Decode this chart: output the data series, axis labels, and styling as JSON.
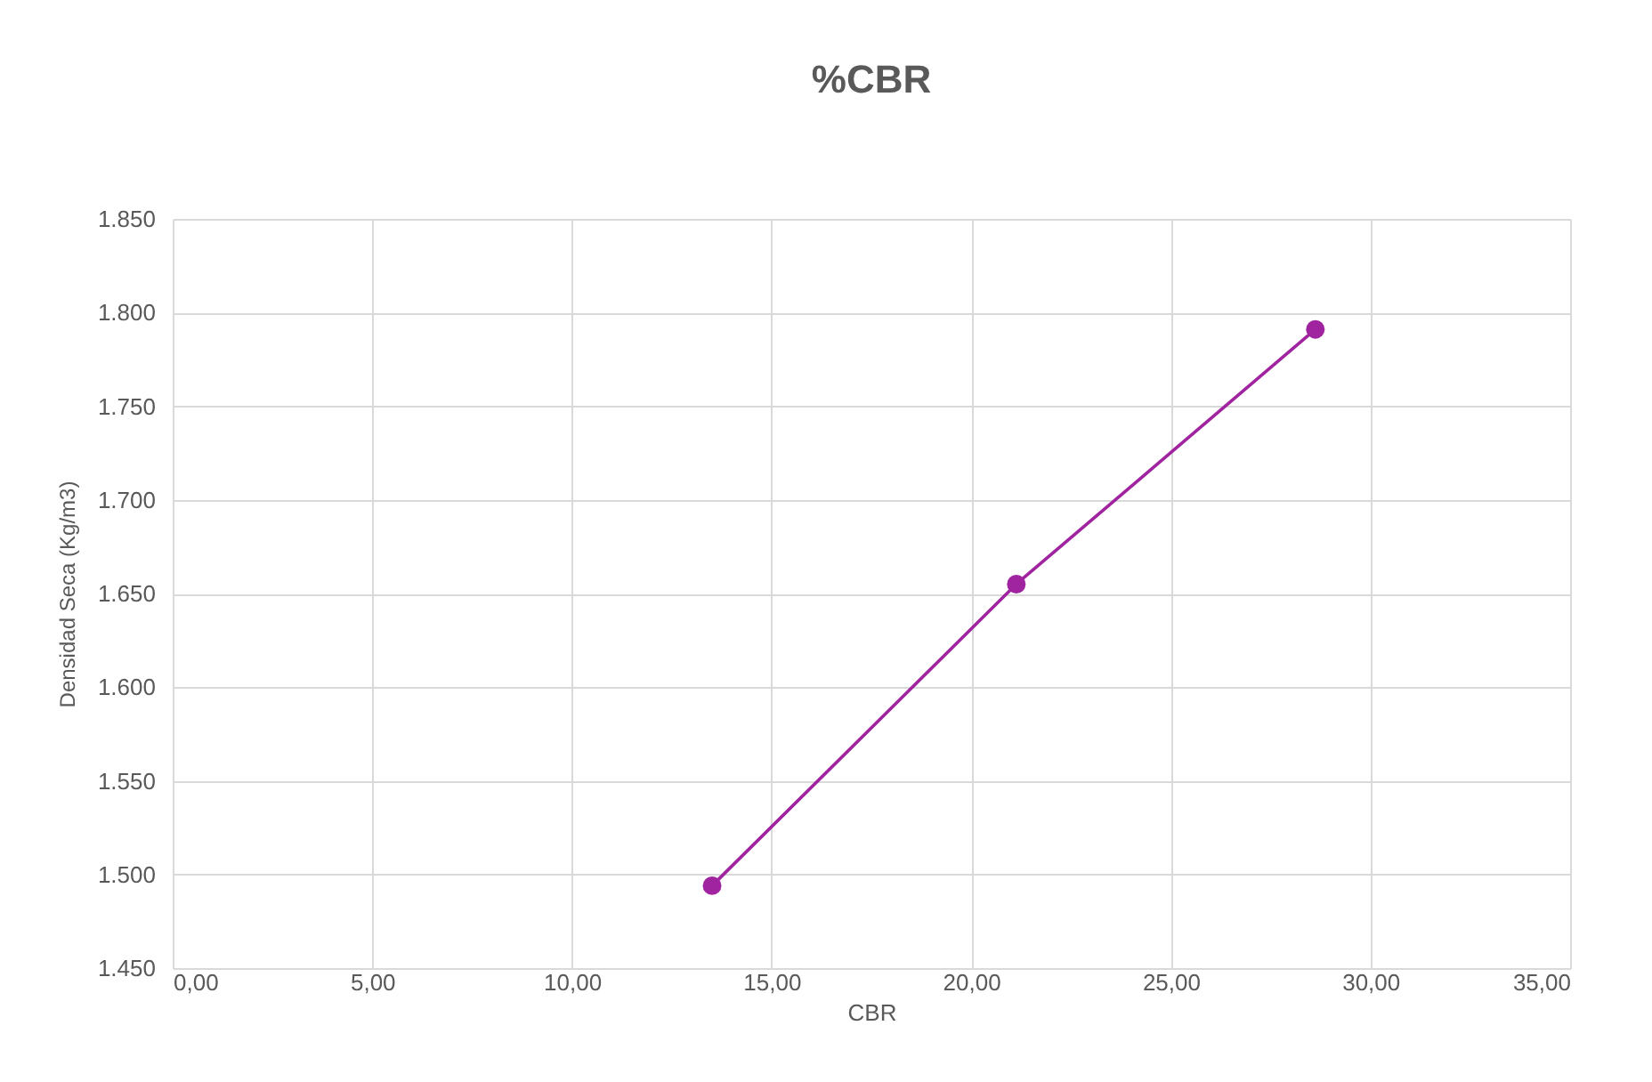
{
  "chart_data": {
    "type": "line",
    "title": "%CBR",
    "xlabel": "CBR",
    "ylabel": "Densidad Seca (Kg/m3)",
    "x": [
      13.51,
      21.13,
      28.62
    ],
    "series": [
      {
        "color": "#a0249f",
        "values": [
          1494,
          1655,
          1791
        ]
      }
    ],
    "xlim": [
      0,
      35
    ],
    "ylim": [
      1450,
      1850
    ],
    "xticks": [
      {
        "value": 0,
        "label": "0,00"
      },
      {
        "value": 5,
        "label": "5,00"
      },
      {
        "value": 10,
        "label": "10,00"
      },
      {
        "value": 15,
        "label": "15,00"
      },
      {
        "value": 20,
        "label": "20,00"
      },
      {
        "value": 25,
        "label": "25,00"
      },
      {
        "value": 30,
        "label": "30,00"
      },
      {
        "value": 35,
        "label": "35,00"
      }
    ],
    "yticks": [
      {
        "value": 1450,
        "label": "1.450"
      },
      {
        "value": 1500,
        "label": "1.500"
      },
      {
        "value": 1550,
        "label": "1.550"
      },
      {
        "value": 1600,
        "label": "1.600"
      },
      {
        "value": 1650,
        "label": "1.650"
      },
      {
        "value": 1700,
        "label": "1.700"
      },
      {
        "value": 1750,
        "label": "1.750"
      },
      {
        "value": 1800,
        "label": "1.800"
      },
      {
        "value": 1850,
        "label": "1.850"
      }
    ],
    "grid": true,
    "marker": "circle",
    "line_style": "solid"
  }
}
